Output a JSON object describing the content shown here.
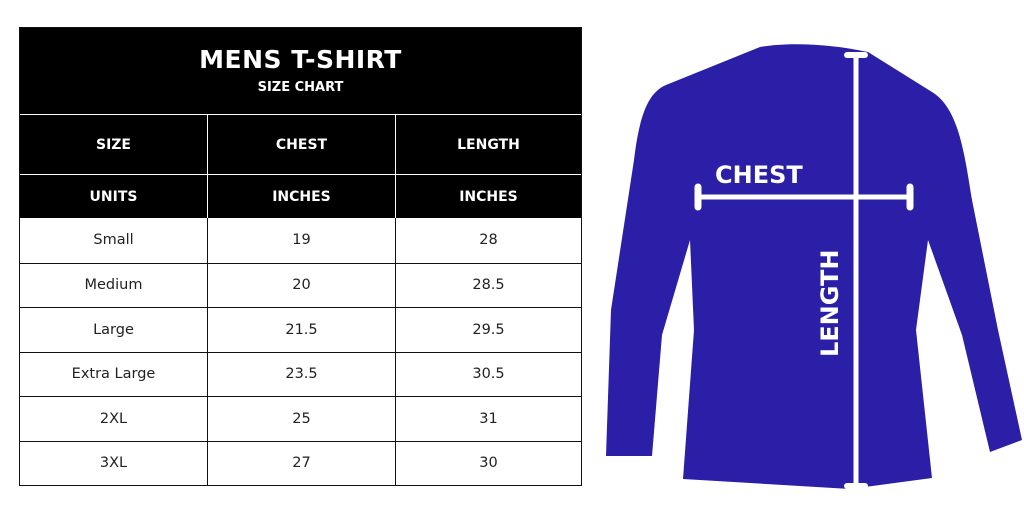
{
  "title": "MENS T-SHIRT",
  "subtitle": "SIZE CHART",
  "headers": [
    "SIZE",
    "CHEST",
    "LENGTH"
  ],
  "units": [
    "UNITS",
    "INCHES",
    "INCHES"
  ],
  "rows": [
    [
      "Small",
      "19",
      "28"
    ],
    [
      "Medium",
      "20",
      "28.5"
    ],
    [
      "Large",
      "21.5",
      "29.5"
    ],
    [
      "Extra Large",
      "23.5",
      "30.5"
    ],
    [
      "2XL",
      "25",
      "31"
    ],
    [
      "3XL",
      "27",
      "30"
    ]
  ],
  "diagram": {
    "chest_label": "CHEST",
    "length_label": "LENGTH",
    "shirt_color": "#2a1fa6",
    "line_color": "#ffffff"
  }
}
